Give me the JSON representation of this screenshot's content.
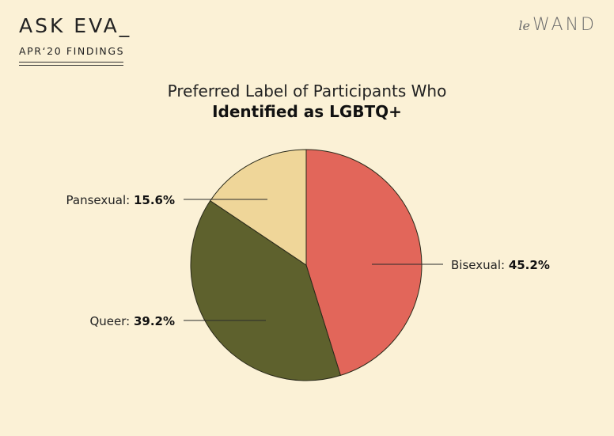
{
  "header": {
    "brand": "ASK EVA_",
    "subtitle": "APR‘20 FINDINGS",
    "logo_prefix": "le",
    "logo_main": "WAND"
  },
  "chart_data": {
    "type": "pie",
    "title": "Preferred Label of Participants Who",
    "title_bold": "Identified as LGBTQ+",
    "start_angle_deg": 0,
    "direction": "clockwise",
    "slices": [
      {
        "label": "Bisexual:",
        "value": 45.2,
        "value_text": "45.2%",
        "color": "#e2665a"
      },
      {
        "label": "Queer:",
        "value": 39.2,
        "value_text": "39.2%",
        "color": "#5e612d"
      },
      {
        "label": "Pansexual:",
        "value": 15.6,
        "value_text": "15.6%",
        "color": "#efd699"
      }
    ],
    "legend": "none",
    "colors": {
      "background": "#fbf1d6",
      "outline": "#2a2a1a"
    }
  }
}
